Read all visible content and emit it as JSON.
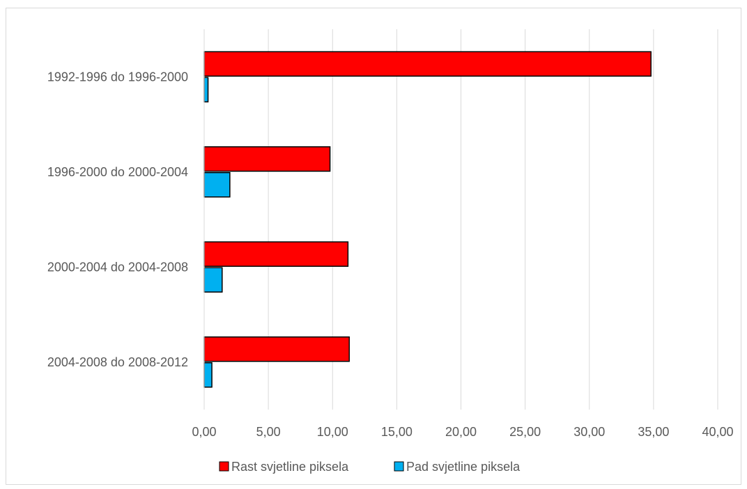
{
  "chart_data": {
    "type": "bar",
    "orientation": "horizontal",
    "categories": [
      "1992-1996 do 1996-2000",
      "1996-2000 do 2000-2004",
      "2000-2004 do 2004-2008",
      "2004-2008 do 2008-2012"
    ],
    "series": [
      {
        "name": "Rast svjetline piksela",
        "color": "#ff0000",
        "values": [
          34.8,
          9.8,
          11.2,
          11.3
        ]
      },
      {
        "name": "Pad svjetline piksela",
        "color": "#00b0f0",
        "values": [
          0.3,
          2.0,
          1.4,
          0.6
        ]
      }
    ],
    "xlim": [
      0,
      40
    ],
    "xticks": [
      0,
      5,
      10,
      15,
      20,
      25,
      30,
      35,
      40
    ],
    "xtick_labels": [
      "0,00",
      "5,00",
      "10,00",
      "15,00",
      "20,00",
      "25,00",
      "30,00",
      "35,00",
      "40,00"
    ],
    "grid": "vertical",
    "legend_position": "bottom",
    "title": "",
    "xlabel": "",
    "ylabel": ""
  }
}
